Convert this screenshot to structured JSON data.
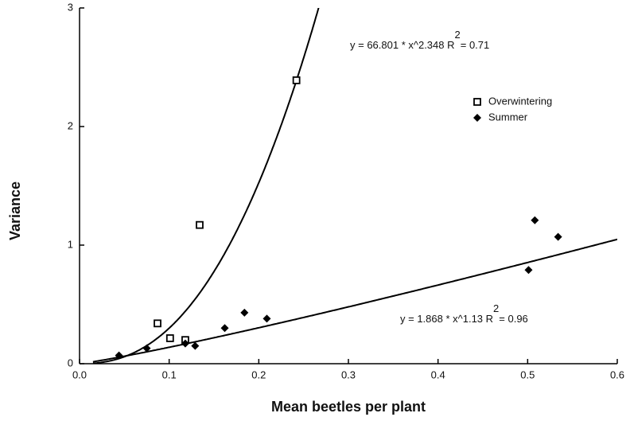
{
  "chart_data": {
    "type": "scatter",
    "x_label": "Mean beetles per plant",
    "y_label": "Variance",
    "xlim": [
      0,
      0.6
    ],
    "xticks": [
      {
        "value": 0,
        "label": "0.0"
      },
      0.1,
      0.2,
      0.3,
      0.4,
      0.5,
      0.6
    ],
    "ylim": [
      0,
      3
    ],
    "yticks": [
      0,
      1,
      2,
      3
    ],
    "legend": "upper right",
    "series": [
      {
        "name": "Overwintering",
        "marker": "square",
        "color": "#000000",
        "x": [
          0.087,
          0.101,
          0.118,
          0.134,
          0.242
        ],
        "values": [
          0.34,
          0.215,
          0.2,
          1.17,
          2.39
        ]
      },
      {
        "name": "Summer",
        "marker": "diamond",
        "color": "#000000",
        "x": [
          0.044,
          0.075,
          0.118,
          0.129,
          0.162,
          0.184,
          0.209,
          0.501,
          0.508,
          0.534
        ],
        "values": [
          0.07,
          0.13,
          0.17,
          0.15,
          0.3,
          0.43,
          0.38,
          0.79,
          1.21,
          1.07
        ]
      }
    ],
    "fits": [
      {
        "coefficient": 66.801,
        "exponent": 2.348,
        "equation": "y = 66.801 * x^2.348   R",
        "superscript": "2",
        "r2_text": "= 0.71"
      },
      {
        "coefficient": 1.868,
        "exponent": 1.13,
        "equation": "y = 1.868 * x^1.13   R",
        "superscript": "2",
        "r2_text": "= 0.96"
      }
    ]
  }
}
